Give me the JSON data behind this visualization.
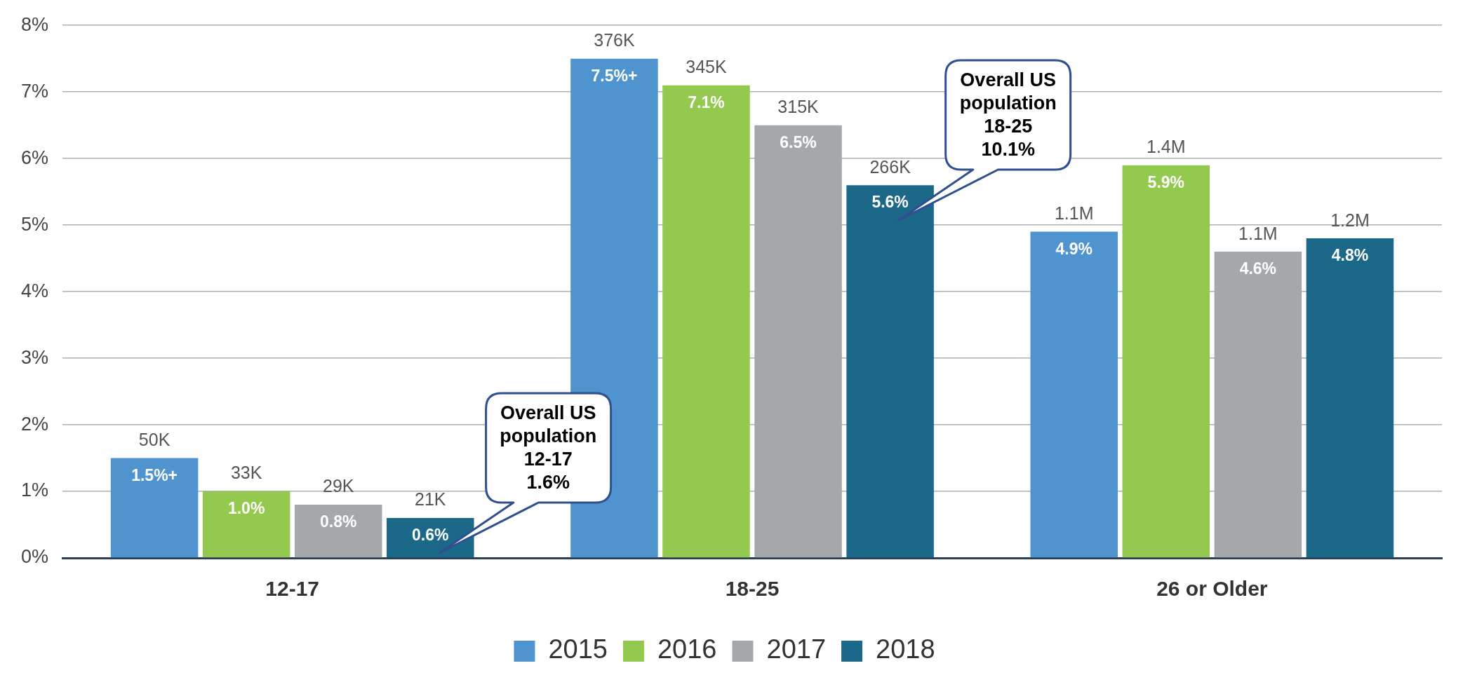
{
  "chart_data": {
    "type": "bar",
    "categories": [
      "12-17",
      "18-25",
      "26 or Older"
    ],
    "series": [
      {
        "name": "2015",
        "color": "#4f94cf",
        "values": [
          1.5,
          7.5,
          4.9
        ],
        "value_labels": [
          "1.5%+",
          "7.5%+",
          "4.9%"
        ]
      },
      {
        "name": "2016",
        "color": "#92c94e",
        "values": [
          1.0,
          7.1,
          5.9
        ],
        "value_labels": [
          "1.0%",
          "7.1%",
          "5.9%"
        ]
      },
      {
        "name": "2017",
        "color": "#a5a8ab",
        "values": [
          0.8,
          6.5,
          4.6
        ],
        "value_labels": [
          "0.8%",
          "6.5%",
          "4.6%"
        ]
      },
      {
        "name": "2018",
        "color": "#1c6889",
        "values": [
          0.6,
          5.6,
          4.8
        ],
        "value_labels": [
          "0.6%",
          "5.6%",
          "4.8%"
        ]
      }
    ],
    "ylim": [
      0,
      8
    ],
    "yticks": [
      {
        "value": 0,
        "label": "0%"
      },
      {
        "value": 1,
        "label": "1%"
      },
      {
        "value": 2,
        "label": "2%"
      },
      {
        "value": 3,
        "label": "3%"
      },
      {
        "value": 4,
        "label": "4%"
      },
      {
        "value": 5,
        "label": "5%"
      },
      {
        "value": 6,
        "label": "6%"
      },
      {
        "value": 7,
        "label": "7%"
      },
      {
        "value": 8,
        "label": "8%"
      }
    ],
    "grid": "y",
    "legend": "bottom",
    "annotations": [
      "50K",
      "33K",
      "29K",
      "21K",
      "376K",
      "345K",
      "315K",
      "266K",
      "1.1M",
      "1.4M",
      "1.1M",
      "1.2M",
      "Overall US\npopulation\n12-17\n1.6%",
      "Overall US\npopulation\n18-25\n10.1%"
    ]
  }
}
